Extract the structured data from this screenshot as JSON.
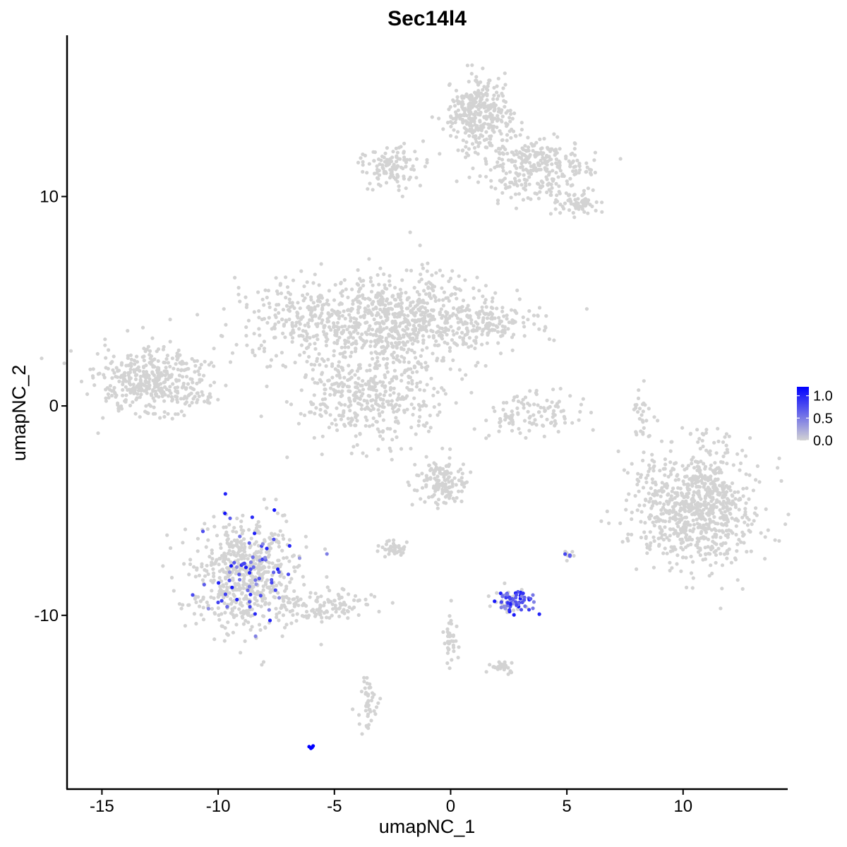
{
  "chart_data": {
    "type": "scatter",
    "title": "Sec14l4",
    "xlabel": "umapNC_1",
    "ylabel": "umapNC_2",
    "xlim": [
      -16.5,
      14.5
    ],
    "ylim": [
      -18.3,
      17.7
    ],
    "x_ticks": [
      -15,
      -10,
      -5,
      0,
      5,
      10
    ],
    "x_tick_labels": [
      "-15",
      "-10",
      "-5",
      "0",
      "5",
      "10"
    ],
    "y_ticks": [
      -10,
      0,
      10
    ],
    "y_tick_labels": [
      "-10",
      "0",
      "10"
    ],
    "grid": false,
    "legend_position": "right",
    "color_scale": {
      "low": "#d3d3d3",
      "high": "#0000ff",
      "min": 0,
      "max": 1.2,
      "ticks": [
        0,
        0.5,
        1
      ],
      "tick_labels": [
        "0.0",
        "0.5",
        "1.0"
      ]
    },
    "clusters": [
      {
        "cx": -12.8,
        "cy": 1.1,
        "sx": 1.2,
        "sy": 0.8,
        "n": 420,
        "expr": 0
      },
      {
        "cx": -8.8,
        "cy": -8.0,
        "sx": 1.1,
        "sy": 1.3,
        "n": 650,
        "expr": 0.06
      },
      {
        "cx": -5.3,
        "cy": -9.6,
        "sx": 1.1,
        "sy": 0.45,
        "n": 120,
        "expr": 0
      },
      {
        "cx": -4.6,
        "cy": 4.1,
        "sx": 2.3,
        "sy": 1.0,
        "n": 520,
        "expr": 0
      },
      {
        "cx": -3.5,
        "cy": 0.6,
        "sx": 1.6,
        "sy": 1.2,
        "n": 420,
        "expr": 0
      },
      {
        "cx": -1.4,
        "cy": 4.2,
        "sx": 1.6,
        "sy": 1.3,
        "n": 350,
        "expr": 0
      },
      {
        "cx": 1.3,
        "cy": 4.0,
        "sx": 1.4,
        "sy": 0.5,
        "n": 180,
        "expr": 0
      },
      {
        "cx": -2.4,
        "cy": 11.4,
        "sx": 0.7,
        "sy": 0.5,
        "n": 120,
        "expr": 0
      },
      {
        "cx": 1.2,
        "cy": 14.0,
        "sx": 0.7,
        "sy": 0.9,
        "n": 330,
        "expr": 0
      },
      {
        "cx": 3.6,
        "cy": 11.4,
        "sx": 1.2,
        "sy": 0.8,
        "n": 300,
        "expr": 0
      },
      {
        "cx": 5.3,
        "cy": 9.7,
        "sx": 0.5,
        "sy": 0.3,
        "n": 70,
        "expr": 0
      },
      {
        "cx": 10.6,
        "cy": -4.8,
        "sx": 1.3,
        "sy": 1.5,
        "n": 820,
        "expr": 0
      },
      {
        "cx": 3.4,
        "cy": -0.4,
        "sx": 0.9,
        "sy": 0.5,
        "n": 110,
        "expr": 0
      },
      {
        "cx": -0.4,
        "cy": -3.6,
        "sx": 0.6,
        "sy": 0.55,
        "n": 140,
        "expr": 0
      },
      {
        "cx": 2.6,
        "cy": -9.3,
        "sx": 0.45,
        "sy": 0.28,
        "n": 90,
        "expr": 0.6
      },
      {
        "cx": 5.1,
        "cy": -7.1,
        "sx": 0.12,
        "sy": 0.12,
        "n": 12,
        "expr": 0.4
      },
      {
        "cx": -2.4,
        "cy": -6.8,
        "sx": 0.35,
        "sy": 0.15,
        "n": 40,
        "expr": 0
      },
      {
        "cx": -3.5,
        "cy": -14.3,
        "sx": 0.2,
        "sy": 0.6,
        "n": 45,
        "expr": 0
      },
      {
        "cx": 0.0,
        "cy": -11.0,
        "sx": 0.15,
        "sy": 0.7,
        "n": 40,
        "expr": 0
      },
      {
        "cx": 2.2,
        "cy": -12.5,
        "sx": 0.3,
        "sy": 0.15,
        "n": 30,
        "expr": 0
      },
      {
        "cx": 8.2,
        "cy": -0.4,
        "sx": 0.15,
        "sy": 0.5,
        "n": 25,
        "expr": 0
      },
      {
        "cx": -6.0,
        "cy": -16.3,
        "sx": 0.05,
        "sy": 0.05,
        "n": 4,
        "expr": 1.2
      }
    ]
  }
}
